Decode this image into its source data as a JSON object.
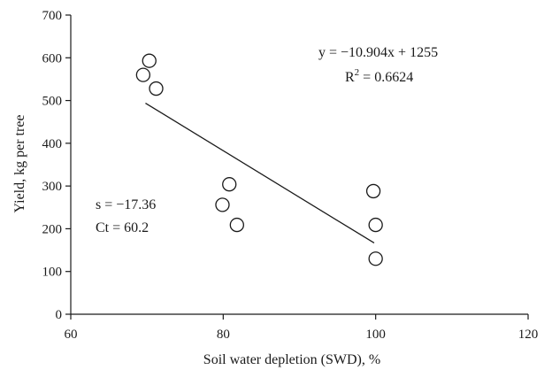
{
  "chart_data": {
    "type": "scatter",
    "xlabel": "Soil water depletion (SWD), %",
    "ylabel": "Yield, kg per tree",
    "xlim": [
      60,
      120
    ],
    "ylim": [
      0,
      700
    ],
    "x_ticks": [
      60,
      80,
      100,
      120
    ],
    "y_ticks": [
      0,
      100,
      200,
      300,
      400,
      500,
      600,
      700
    ],
    "grid": false,
    "marker": "open-circle",
    "points": [
      {
        "x": 69.5,
        "y": 560
      },
      {
        "x": 70.3,
        "y": 593
      },
      {
        "x": 71.2,
        "y": 528
      },
      {
        "x": 79.9,
        "y": 256
      },
      {
        "x": 80.8,
        "y": 304
      },
      {
        "x": 81.8,
        "y": 209
      },
      {
        "x": 99.7,
        "y": 288
      },
      {
        "x": 100.0,
        "y": 209
      },
      {
        "x": 100.0,
        "y": 130
      }
    ],
    "trendline": {
      "x_start": 69.8,
      "x_end": 99.8,
      "slope": -10.904,
      "intercept": 1255
    },
    "annotations": {
      "equation": "y = −10.904x + 1255",
      "r2_prefix": "R",
      "r2_exp": "2",
      "r2_value": " = 0.6624",
      "s_text": "s = −17.36",
      "ct_text": "Ct = 60.2"
    }
  }
}
